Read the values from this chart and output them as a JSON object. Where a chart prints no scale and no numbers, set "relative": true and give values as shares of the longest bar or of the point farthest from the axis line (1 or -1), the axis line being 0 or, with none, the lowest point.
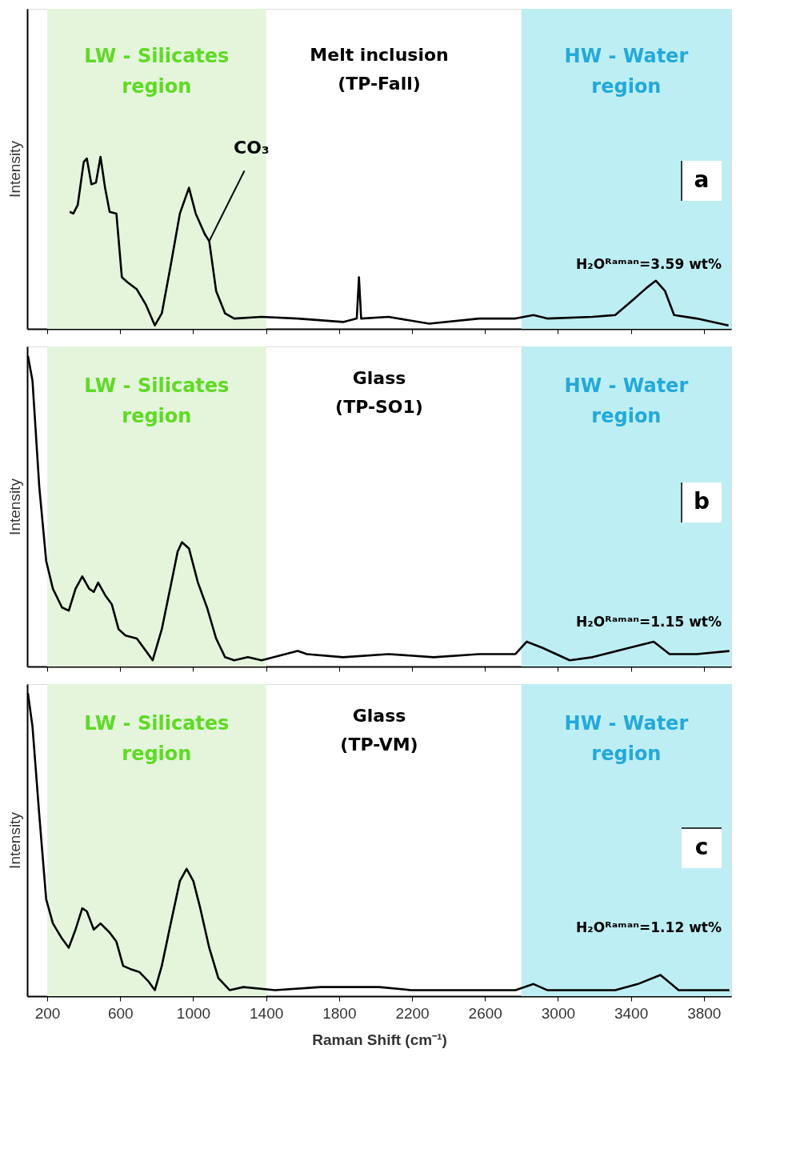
{
  "chart_data": [
    {
      "type": "line",
      "title": "Melt inclusion (TP-Fall)",
      "ylabel": "Intensity",
      "relative": true,
      "tick_labels": false,
      "xlim": [
        90,
        3950
      ],
      "xticks": [
        200,
        600,
        1000,
        1400,
        1800,
        2200,
        2600,
        3000,
        3400,
        3800
      ],
      "x": [
        323,
        343,
        367,
        400,
        417,
        442,
        467,
        492,
        517,
        542,
        579,
        609,
        641,
        691,
        741,
        790,
        828,
        877,
        927,
        977,
        1014,
        1064,
        1088,
        1126,
        1175,
        1225,
        1375,
        1573,
        1822,
        1897,
        1909,
        1921,
        2071,
        2294,
        2568,
        2767,
        2866,
        2941,
        3189,
        3314,
        3413,
        3488,
        3537,
        3587,
        3637,
        3761,
        3935
      ],
      "series": [
        {
          "color": "#000000",
          "values": [
            0.68,
            0.67,
            0.72,
            0.97,
            0.99,
            0.84,
            0.85,
            1,
            0.82,
            0.68,
            0.67,
            0.3,
            0.27,
            0.23,
            0.14,
            0.02,
            0.09,
            0.37,
            0.67,
            0.82,
            0.67,
            0.55,
            0.51,
            0.22,
            0.09,
            0.06,
            0.07,
            0.06,
            0.04,
            0.06,
            0.3,
            0.06,
            0.07,
            0.03,
            0.06,
            0.06,
            0.08,
            0.06,
            0.07,
            0.08,
            0.17,
            0.24,
            0.28,
            0.22,
            0.08,
            0.06,
            0.02
          ]
        }
      ],
      "bands": [
        {
          "axis": "x",
          "from": 200,
          "to": 1400,
          "label": "LW - Silicates region",
          "color": "#e4f5dc"
        },
        {
          "axis": "x",
          "from": 2800,
          "to": 3950,
          "label": "HW - Water region",
          "color": "#bdeef3"
        }
      ],
      "annotations": [
        "a",
        "H₂Oᴿᵃᵐᵃⁿ=3.59 wt%",
        {
          "text": "CO₃",
          "x": 1088,
          "y": 0.51
        }
      ]
    },
    {
      "type": "line",
      "title": "Glass (TP-SO1)",
      "ylabel": "Intensity",
      "relative": true,
      "tick_labels": false,
      "xlim": [
        90,
        3950
      ],
      "xticks": [
        200,
        600,
        1000,
        1400,
        1800,
        2200,
        2600,
        3000,
        3400,
        3800
      ],
      "x": [
        94,
        119,
        156,
        194,
        231,
        281,
        318,
        355,
        392,
        430,
        455,
        479,
        517,
        554,
        591,
        629,
        691,
        741,
        778,
        828,
        877,
        915,
        939,
        977,
        1026,
        1076,
        1126,
        1175,
        1225,
        1300,
        1375,
        1573,
        1623,
        1822,
        2071,
        2319,
        2568,
        2767,
        2829,
        2916,
        3065,
        3189,
        3389,
        3525,
        3612,
        3761,
        3940
      ],
      "series": [
        {
          "color": "#000000",
          "values": [
            1,
            0.92,
            0.58,
            0.34,
            0.25,
            0.19,
            0.18,
            0.25,
            0.29,
            0.25,
            0.24,
            0.27,
            0.23,
            0.2,
            0.12,
            0.1,
            0.09,
            0.05,
            0.02,
            0.12,
            0.26,
            0.37,
            0.4,
            0.38,
            0.27,
            0.19,
            0.09,
            0.03,
            0.02,
            0.03,
            0.02,
            0.05,
            0.04,
            0.03,
            0.04,
            0.03,
            0.04,
            0.04,
            0.08,
            0.06,
            0.02,
            0.03,
            0.06,
            0.08,
            0.04,
            0.04,
            0.05
          ]
        }
      ],
      "bands": [
        {
          "axis": "x",
          "from": 200,
          "to": 1400,
          "label": "LW - Silicates region",
          "color": "#e4f5dc"
        },
        {
          "axis": "x",
          "from": 2800,
          "to": 3950,
          "label": "HW - Water region",
          "color": "#bdeef3"
        }
      ],
      "annotations": [
        "b",
        "H₂Oᴿᵃᵐᵃⁿ=1.15 wt%"
      ]
    },
    {
      "type": "line",
      "title": "Glass (TP-VM)",
      "ylabel": "Intensity",
      "xlabel": "Raman Shift (cm⁻¹)",
      "relative": true,
      "tick_labels": "x",
      "xlim": [
        90,
        3950
      ],
      "xticks": [
        200,
        600,
        1000,
        1400,
        1800,
        2200,
        2600,
        3000,
        3400,
        3800
      ],
      "x": [
        94,
        119,
        156,
        194,
        231,
        281,
        318,
        355,
        392,
        417,
        455,
        492,
        542,
        579,
        616,
        654,
        704,
        753,
        790,
        828,
        877,
        927,
        964,
        1001,
        1039,
        1088,
        1138,
        1200,
        1275,
        1449,
        1698,
        2021,
        2195,
        2568,
        2767,
        2866,
        2941,
        3065,
        3314,
        3438,
        3562,
        3662,
        3940
      ],
      "series": [
        {
          "color": "#000000",
          "values": [
            1,
            0.89,
            0.6,
            0.32,
            0.24,
            0.19,
            0.16,
            0.22,
            0.29,
            0.28,
            0.22,
            0.24,
            0.21,
            0.18,
            0.1,
            0.09,
            0.08,
            0.05,
            0.02,
            0.1,
            0.24,
            0.38,
            0.42,
            0.38,
            0.29,
            0.16,
            0.06,
            0.02,
            0.03,
            0.02,
            0.03,
            0.03,
            0.02,
            0.02,
            0.02,
            0.04,
            0.02,
            0.02,
            0.02,
            0.04,
            0.07,
            0.02,
            0.02
          ]
        }
      ],
      "bands": [
        {
          "axis": "x",
          "from": 200,
          "to": 1400,
          "label": "LW - Silicates region",
          "color": "#e4f5dc"
        },
        {
          "axis": "x",
          "from": 2800,
          "to": 3950,
          "label": "HW - Water region",
          "color": "#bdeef3"
        }
      ],
      "annotations": [
        "c",
        "H₂Oᴿᵃᵐᵃⁿ=1.12 wt%"
      ]
    }
  ]
}
